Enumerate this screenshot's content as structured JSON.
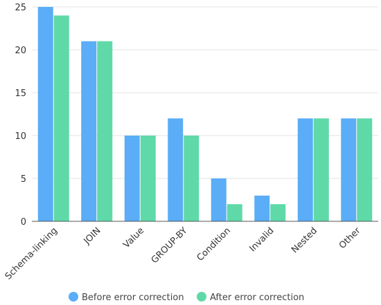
{
  "chart_data": {
    "type": "bar",
    "categories": [
      "Schema-linking",
      "JOIN",
      "Value",
      "GROUP-BY",
      "Condition",
      "Invalid",
      "Nested",
      "Other"
    ],
    "series": [
      {
        "name": "Before error correction",
        "values": [
          25,
          21,
          10,
          12,
          5,
          3,
          12,
          12
        ],
        "color": "#5aadf6"
      },
      {
        "name": "After error correction",
        "values": [
          24,
          21,
          10,
          10,
          2,
          2,
          12,
          12
        ],
        "color": "#5fd9a8"
      }
    ],
    "yticks": [
      "0",
      "5",
      "10",
      "15",
      "20",
      "25"
    ],
    "ylim": [
      0,
      25
    ],
    "grid": true,
    "legend_position": "bottom-center"
  }
}
